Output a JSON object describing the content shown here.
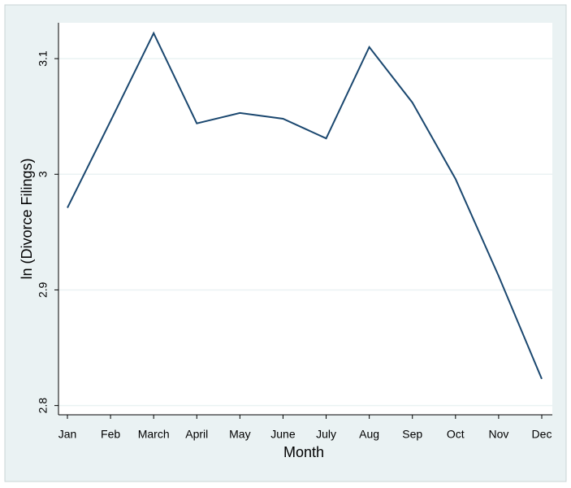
{
  "chart_data": {
    "type": "line",
    "x_label": "Month",
    "y_label": "ln (Divorce Filings)",
    "categories": [
      "Jan",
      "Feb",
      "March",
      "April",
      "May",
      "June",
      "July",
      "Aug",
      "Sep",
      "Oct",
      "Nov",
      "Dec"
    ],
    "values": [
      2.971,
      3.046,
      3.122,
      3.044,
      3.053,
      3.048,
      3.031,
      3.11,
      3.062,
      2.996,
      2.912,
      2.823
    ],
    "color": "#1a476f",
    "ylim": [
      2.792,
      3.131
    ],
    "yticks": [
      2.8,
      2.9,
      3,
      3.1
    ],
    "grid": true
  }
}
